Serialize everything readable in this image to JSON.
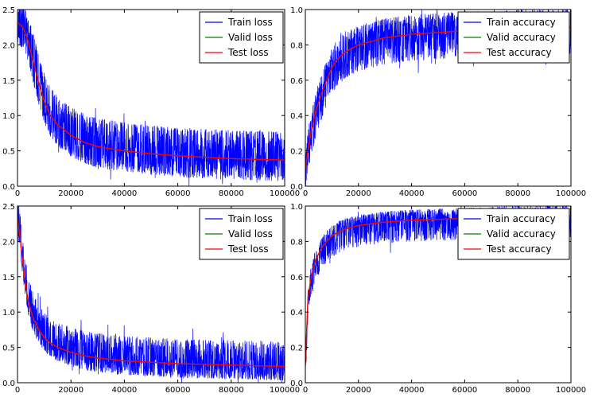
{
  "chart_data": [
    {
      "type": "line",
      "position": "top-left",
      "xlim": [
        0,
        100000
      ],
      "ylim": [
        0,
        2.5
      ],
      "xticks": [
        "0",
        "20000",
        "40000",
        "60000",
        "80000",
        "100000"
      ],
      "yticks": [
        "0.0",
        "0.5",
        "1.0",
        "1.5",
        "2.0",
        "2.5"
      ],
      "legend_placement": "top-right",
      "series": [
        {
          "name": "Train loss",
          "color": "#0000ff",
          "style": "noisy",
          "x": [
            0,
            2000,
            4000,
            6000,
            8000,
            10000,
            12000,
            15000,
            20000,
            25000,
            30000,
            40000,
            50000,
            60000,
            70000,
            80000,
            90000,
            100000
          ],
          "values": [
            2.32,
            2.25,
            2.05,
            1.75,
            1.45,
            1.2,
            1.02,
            0.87,
            0.72,
            0.62,
            0.56,
            0.5,
            0.46,
            0.43,
            0.41,
            0.39,
            0.38,
            0.37
          ],
          "noise_low": 0.3,
          "noise_high": 0.4
        },
        {
          "name": "Valid loss",
          "color": "#008000",
          "x": [
            0,
            2000,
            4000,
            6000,
            8000,
            10000,
            12000,
            15000,
            20000,
            25000,
            30000,
            40000,
            50000,
            60000,
            70000,
            80000,
            90000,
            100000
          ],
          "values": [
            2.32,
            2.25,
            2.05,
            1.75,
            1.45,
            1.2,
            1.02,
            0.87,
            0.72,
            0.62,
            0.56,
            0.5,
            0.46,
            0.43,
            0.41,
            0.39,
            0.38,
            0.37
          ]
        },
        {
          "name": "Test loss",
          "color": "#ff0000",
          "x": [
            0,
            2000,
            4000,
            6000,
            8000,
            10000,
            12000,
            15000,
            20000,
            25000,
            30000,
            40000,
            50000,
            60000,
            70000,
            80000,
            90000,
            100000
          ],
          "values": [
            2.32,
            2.25,
            2.05,
            1.75,
            1.45,
            1.2,
            1.02,
            0.87,
            0.72,
            0.62,
            0.56,
            0.5,
            0.46,
            0.43,
            0.41,
            0.39,
            0.38,
            0.37
          ]
        }
      ]
    },
    {
      "type": "line",
      "position": "top-right",
      "xlim": [
        0,
        100000
      ],
      "ylim": [
        0,
        1.0
      ],
      "xticks": [
        "0",
        "20000",
        "40000",
        "60000",
        "80000",
        "100000"
      ],
      "yticks": [
        "0.0",
        "0.2",
        "0.4",
        "0.6",
        "0.8",
        "1.0"
      ],
      "legend_placement": "top-right",
      "series": [
        {
          "name": "Train accuracy",
          "color": "#0000ff",
          "style": "noisy",
          "x": [
            0,
            2000,
            4000,
            6000,
            8000,
            10000,
            12000,
            15000,
            20000,
            25000,
            30000,
            40000,
            50000,
            60000,
            70000,
            80000,
            90000,
            100000
          ],
          "values": [
            0.1,
            0.3,
            0.43,
            0.52,
            0.6,
            0.67,
            0.72,
            0.76,
            0.8,
            0.82,
            0.84,
            0.86,
            0.87,
            0.88,
            0.88,
            0.89,
            0.89,
            0.9
          ],
          "noise_low": 0.15,
          "noise_high": 0.11
        },
        {
          "name": "Valid accuracy",
          "color": "#008000",
          "x": [
            0,
            2000,
            4000,
            6000,
            8000,
            10000,
            12000,
            15000,
            20000,
            25000,
            30000,
            40000,
            50000,
            60000,
            70000,
            80000,
            90000,
            100000
          ],
          "values": [
            0.1,
            0.3,
            0.43,
            0.52,
            0.6,
            0.67,
            0.72,
            0.76,
            0.8,
            0.82,
            0.84,
            0.86,
            0.87,
            0.88,
            0.88,
            0.89,
            0.89,
            0.9
          ]
        },
        {
          "name": "Test accuracy",
          "color": "#ff0000",
          "x": [
            0,
            2000,
            4000,
            6000,
            8000,
            10000,
            12000,
            15000,
            20000,
            25000,
            30000,
            40000,
            50000,
            60000,
            70000,
            80000,
            90000,
            100000
          ],
          "values": [
            0.1,
            0.3,
            0.43,
            0.52,
            0.6,
            0.67,
            0.72,
            0.76,
            0.8,
            0.82,
            0.84,
            0.86,
            0.87,
            0.88,
            0.88,
            0.89,
            0.89,
            0.9
          ]
        }
      ]
    },
    {
      "type": "line",
      "position": "bottom-left",
      "xlim": [
        0,
        100000
      ],
      "ylim": [
        0,
        2.5
      ],
      "xticks": [
        "0",
        "20000",
        "40000",
        "60000",
        "80000",
        "100000"
      ],
      "yticks": [
        "0.0",
        "0.5",
        "1.0",
        "1.5",
        "2.0",
        "2.5"
      ],
      "legend_placement": "top-right",
      "series": [
        {
          "name": "Train loss",
          "color": "#0000ff",
          "style": "noisy",
          "x": [
            0,
            1000,
            2000,
            3000,
            4000,
            6000,
            8000,
            10000,
            12000,
            15000,
            20000,
            25000,
            30000,
            40000,
            50000,
            60000,
            70000,
            80000,
            90000,
            100000
          ],
          "values": [
            2.32,
            2.05,
            1.7,
            1.4,
            1.15,
            0.9,
            0.75,
            0.64,
            0.57,
            0.5,
            0.43,
            0.38,
            0.35,
            0.31,
            0.29,
            0.27,
            0.26,
            0.25,
            0.24,
            0.23
          ],
          "noise_low": 0.2,
          "noise_high": 0.35
        },
        {
          "name": "Valid loss",
          "color": "#008000",
          "x": [
            0,
            1000,
            2000,
            3000,
            4000,
            6000,
            8000,
            10000,
            12000,
            15000,
            20000,
            25000,
            30000,
            40000,
            50000,
            60000,
            70000,
            80000,
            90000,
            100000
          ],
          "values": [
            2.32,
            2.05,
            1.7,
            1.4,
            1.15,
            0.9,
            0.75,
            0.64,
            0.57,
            0.5,
            0.43,
            0.38,
            0.35,
            0.31,
            0.29,
            0.27,
            0.26,
            0.25,
            0.24,
            0.23
          ]
        },
        {
          "name": "Test loss",
          "color": "#ff0000",
          "x": [
            0,
            1000,
            2000,
            3000,
            4000,
            6000,
            8000,
            10000,
            12000,
            15000,
            20000,
            25000,
            30000,
            40000,
            50000,
            60000,
            70000,
            80000,
            90000,
            100000
          ],
          "values": [
            2.32,
            2.05,
            1.7,
            1.4,
            1.15,
            0.9,
            0.75,
            0.64,
            0.57,
            0.5,
            0.43,
            0.38,
            0.35,
            0.31,
            0.29,
            0.27,
            0.26,
            0.25,
            0.24,
            0.23
          ]
        }
      ]
    },
    {
      "type": "line",
      "position": "bottom-right",
      "xlim": [
        0,
        100000
      ],
      "ylim": [
        0,
        1.0
      ],
      "xticks": [
        "0",
        "20000",
        "40000",
        "60000",
        "80000",
        "100000"
      ],
      "yticks": [
        "0.0",
        "0.2",
        "0.4",
        "0.6",
        "0.8",
        "1.0"
      ],
      "legend_placement": "top-right",
      "series": [
        {
          "name": "Train accuracy",
          "color": "#0000ff",
          "style": "noisy",
          "x": [
            0,
            1000,
            2000,
            3000,
            4000,
            6000,
            8000,
            10000,
            12000,
            15000,
            20000,
            25000,
            30000,
            40000,
            50000,
            60000,
            70000,
            80000,
            90000,
            100000
          ],
          "values": [
            0.1,
            0.48,
            0.58,
            0.65,
            0.7,
            0.76,
            0.8,
            0.83,
            0.85,
            0.87,
            0.89,
            0.9,
            0.91,
            0.92,
            0.925,
            0.93,
            0.935,
            0.94,
            0.94,
            0.945
          ],
          "noise_low": 0.12,
          "noise_high": 0.06
        },
        {
          "name": "Valid accuracy",
          "color": "#008000",
          "x": [
            0,
            1000,
            2000,
            3000,
            4000,
            6000,
            8000,
            10000,
            12000,
            15000,
            20000,
            25000,
            30000,
            40000,
            50000,
            60000,
            70000,
            80000,
            90000,
            100000
          ],
          "values": [
            0.1,
            0.48,
            0.58,
            0.65,
            0.7,
            0.76,
            0.8,
            0.83,
            0.85,
            0.87,
            0.89,
            0.9,
            0.91,
            0.92,
            0.925,
            0.93,
            0.935,
            0.94,
            0.94,
            0.945
          ]
        },
        {
          "name": "Test accuracy",
          "color": "#ff0000",
          "x": [
            0,
            1000,
            2000,
            3000,
            4000,
            6000,
            8000,
            10000,
            12000,
            15000,
            20000,
            25000,
            30000,
            40000,
            50000,
            60000,
            70000,
            80000,
            90000,
            100000
          ],
          "values": [
            0.1,
            0.48,
            0.58,
            0.65,
            0.7,
            0.76,
            0.8,
            0.83,
            0.85,
            0.87,
            0.89,
            0.9,
            0.91,
            0.92,
            0.925,
            0.93,
            0.935,
            0.94,
            0.94,
            0.945
          ]
        }
      ]
    }
  ]
}
